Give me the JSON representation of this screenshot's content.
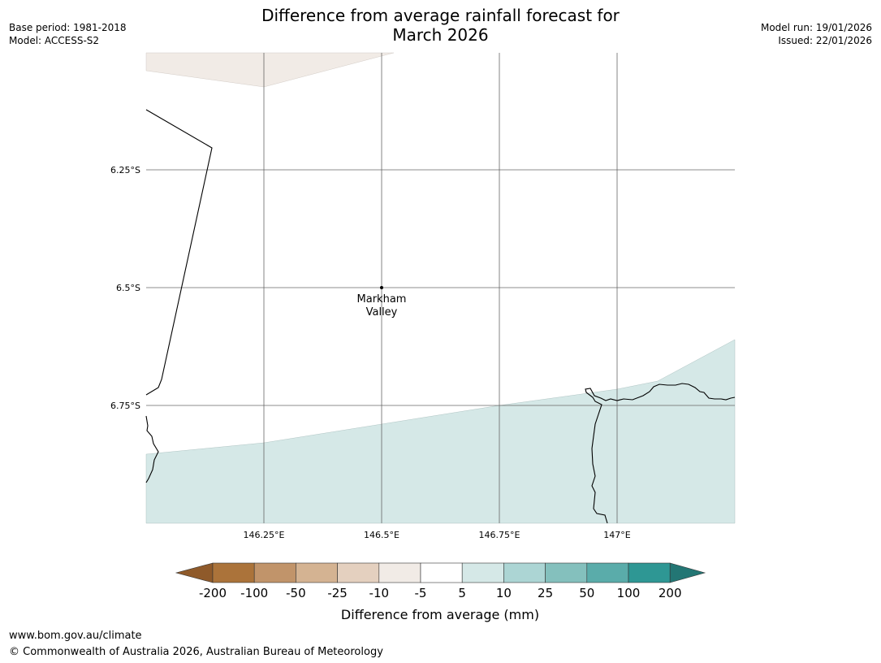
{
  "header": {
    "title_line1": "Difference from average rainfall forecast for",
    "title_line2": "March 2026",
    "base_period": "Base period: 1981-2018",
    "model": "Model: ACCESS-S2",
    "model_run": "Model run: 19/01/2026",
    "issued": "Issued: 22/01/2026"
  },
  "map": {
    "lat_labels": [
      "6.25°S",
      "6.5°S",
      "6.75°S"
    ],
    "lon_labels": [
      "146.25°E",
      "146.5°E",
      "146.75°E",
      "147°E"
    ],
    "place": {
      "name_line1": "Markham",
      "name_line2": "Valley"
    }
  },
  "colorbar": {
    "ticks": [
      "-200",
      "-100",
      "-50",
      "-25",
      "-10",
      "-5",
      "5",
      "10",
      "25",
      "50",
      "100",
      "200"
    ],
    "colors": [
      "#8f5a2a",
      "#ab733a",
      "#c1946a",
      "#d4b392",
      "#e4d0bf",
      "#f1ebe6",
      "#ffffff",
      "#d5e8e7",
      "#acd5d4",
      "#84c0bd",
      "#5aacaa",
      "#2e9794",
      "#237674"
    ],
    "label": "Difference from average (mm)"
  },
  "footer": {
    "website": "www.bom.gov.au/climate",
    "copyright": "© Commonwealth of Australia 2026, Australian Bureau of Meteorology"
  }
}
